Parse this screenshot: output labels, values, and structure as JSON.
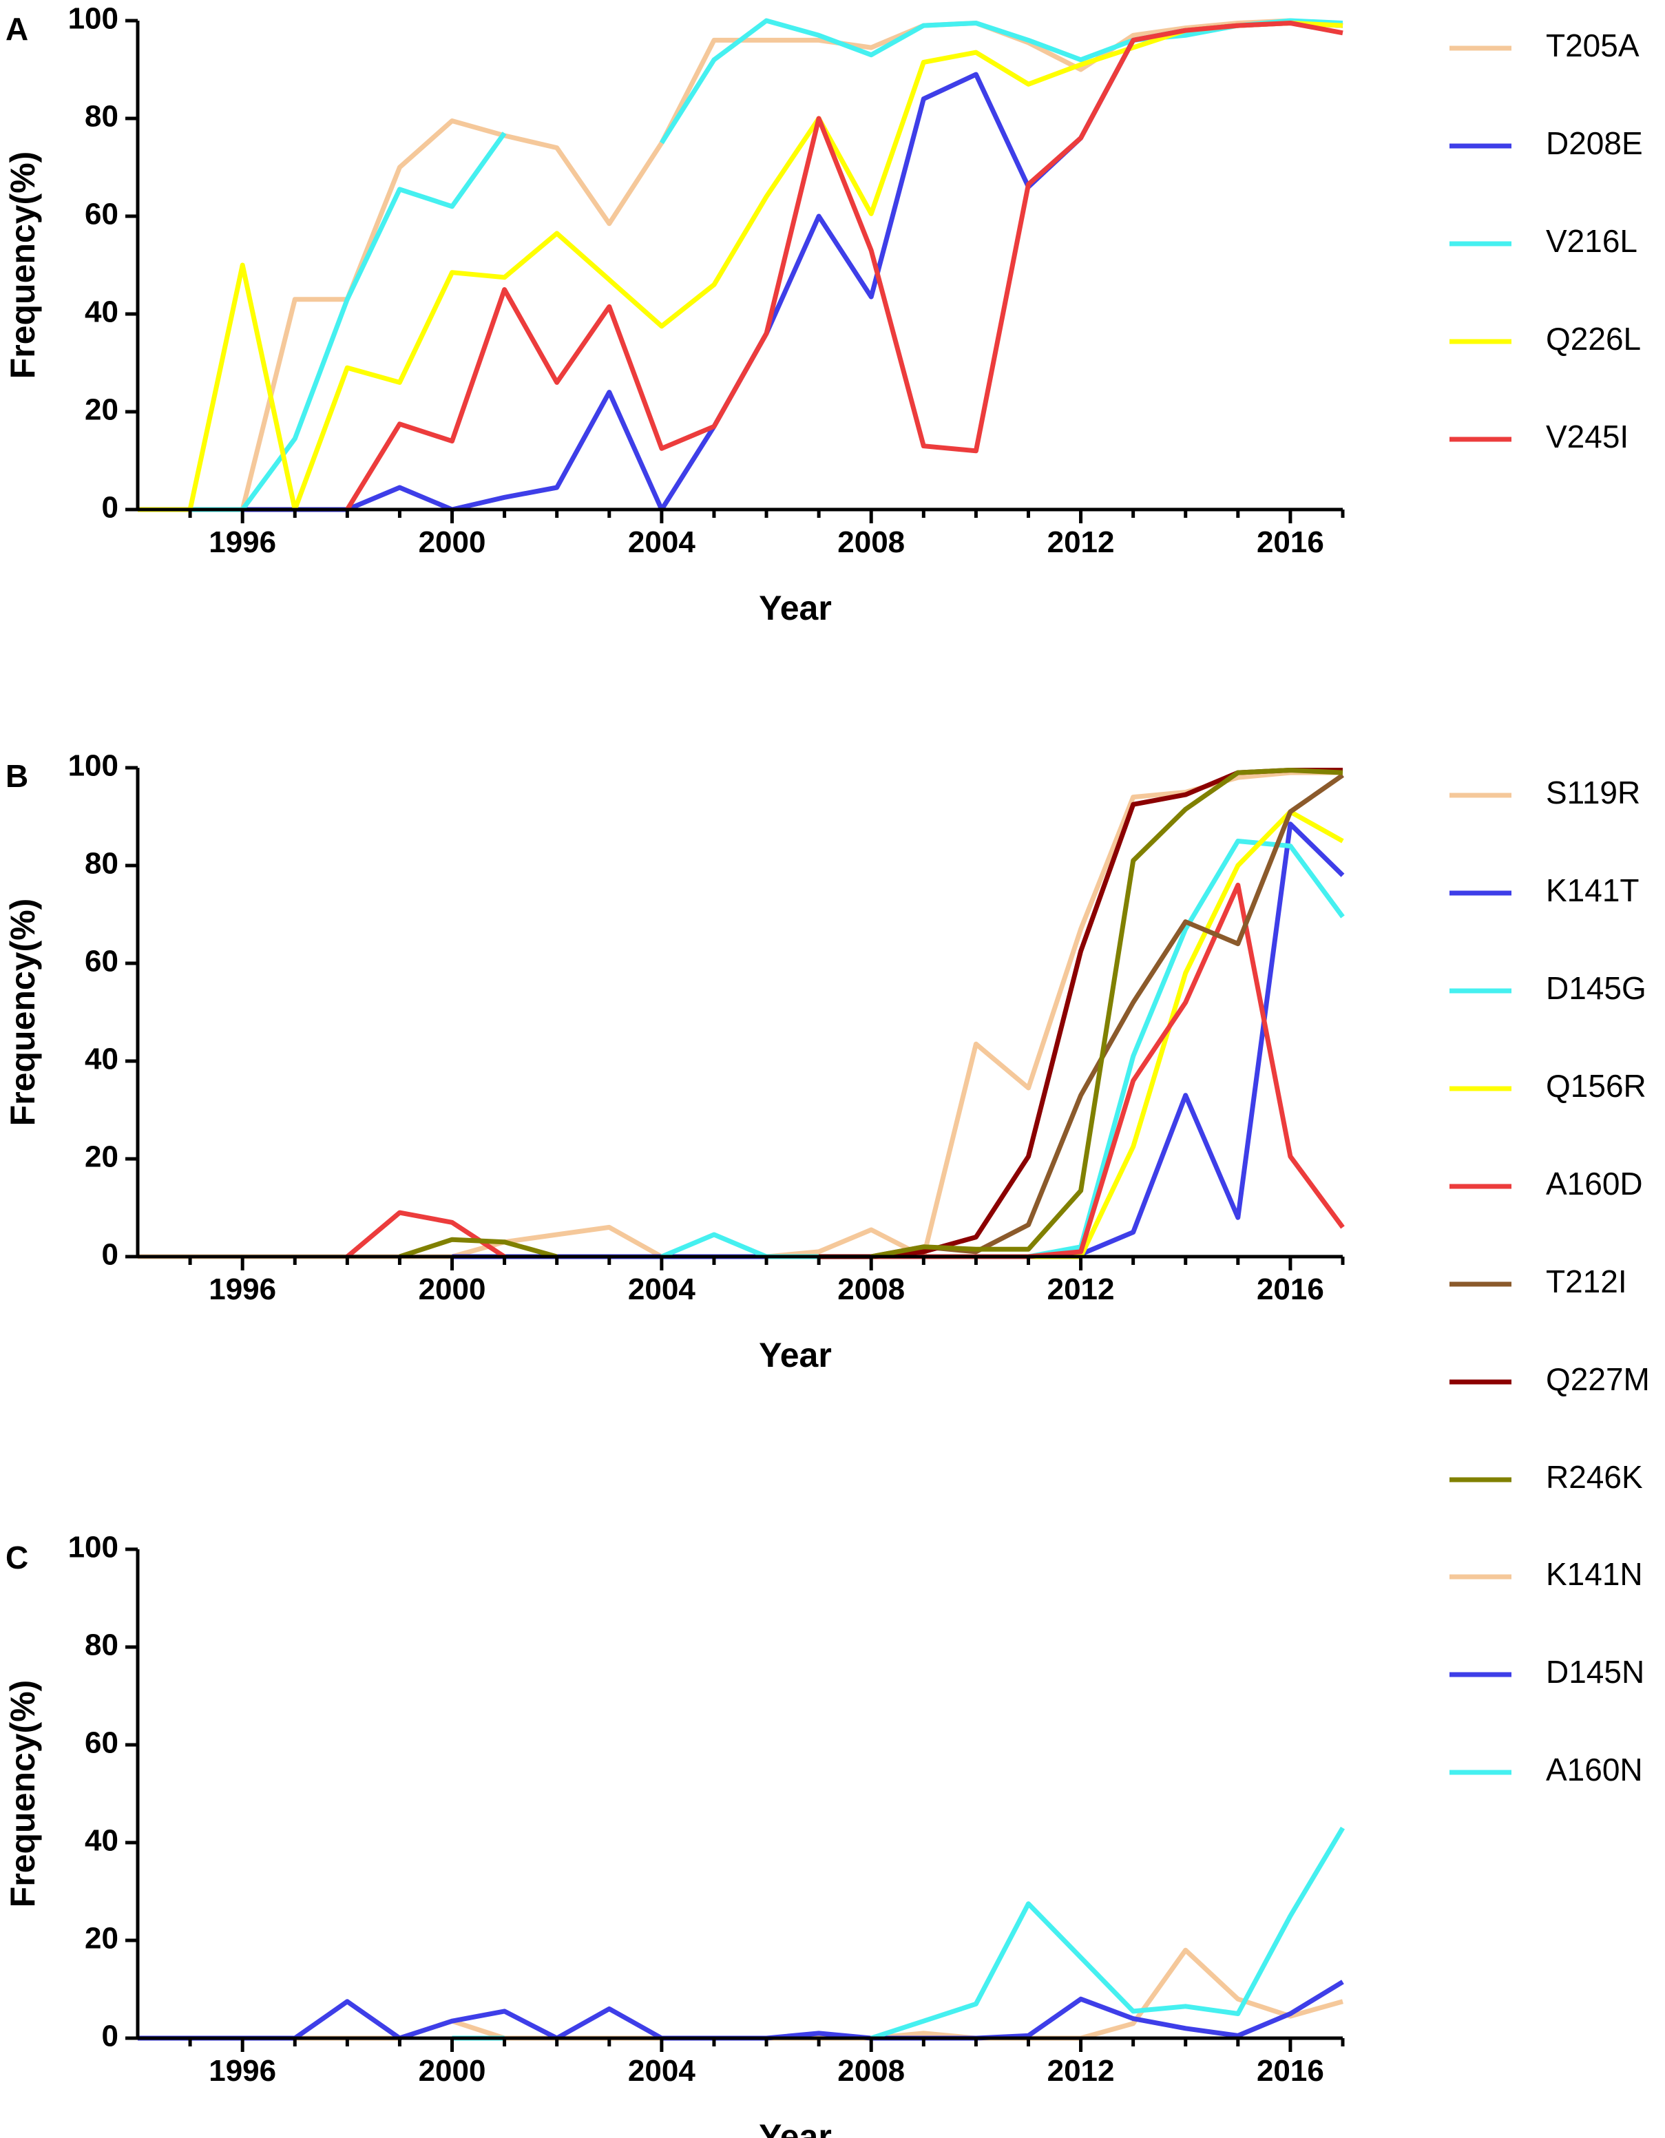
{
  "chart_data": [
    {
      "panel": "A",
      "type": "line",
      "xlabel": "Year",
      "ylabel": "Frequency(%)",
      "xlim": [
        1994,
        2017
      ],
      "ylim": [
        0,
        100
      ],
      "xticks": [
        1996,
        2000,
        2004,
        2008,
        2012,
        2016
      ],
      "yticks": [
        0,
        20,
        40,
        60,
        80,
        100
      ],
      "x": [
        1994,
        1995,
        1996,
        1997,
        1998,
        1999,
        2000,
        2001,
        2002,
        2003,
        2004,
        2005,
        2006,
        2007,
        2008,
        2009,
        2010,
        2011,
        2012,
        2013,
        2014,
        2015,
        2016,
        2017
      ],
      "series": [
        {
          "name": "T205A",
          "color": "#f5c89a",
          "values": [
            0,
            0,
            0,
            43,
            43,
            70,
            79.5,
            76.5,
            74,
            58.5,
            75,
            96,
            96,
            96,
            94.5,
            99,
            99.5,
            95.5,
            90,
            97,
            98.5,
            99.5,
            100,
            99
          ]
        },
        {
          "name": "D208E",
          "color": "#3e3ee8",
          "values": [
            0,
            0,
            0,
            0,
            0,
            4.5,
            0,
            2.5,
            4.5,
            24,
            0,
            17,
            36,
            60,
            43.5,
            84,
            89,
            66,
            76,
            96,
            98,
            99,
            99.5,
            99
          ]
        },
        {
          "name": "V216L",
          "color": "#45f0f0",
          "values": [
            0,
            0,
            0,
            14.5,
            43,
            65.5,
            62,
            77,
            null,
            null,
            75,
            92,
            100,
            97,
            93,
            99,
            99.5,
            96,
            92,
            96,
            97,
            99,
            100,
            99.5
          ]
        },
        {
          "name": "Q226L",
          "color": "#ffff00",
          "values": [
            0,
            0,
            50,
            0,
            29,
            26,
            48.5,
            47.5,
            56.5,
            47,
            37.5,
            46,
            64,
            80,
            60.5,
            91.5,
            93.5,
            87,
            91,
            94.5,
            98,
            99,
            99.5,
            99
          ]
        },
        {
          "name": "V245I",
          "color": "#ec3c3c",
          "values": [
            null,
            null,
            null,
            null,
            0,
            17.5,
            14,
            45,
            26,
            41.5,
            12.5,
            17,
            36,
            80,
            53,
            13,
            12,
            66.5,
            76,
            96,
            98,
            99,
            99.5,
            97.5
          ]
        }
      ]
    },
    {
      "panel": "B",
      "type": "line",
      "xlabel": "Year",
      "ylabel": "Frequency(%)",
      "xlim": [
        1994,
        2017
      ],
      "ylim": [
        0,
        100
      ],
      "xticks": [
        1996,
        2000,
        2004,
        2008,
        2012,
        2016
      ],
      "yticks": [
        0,
        20,
        40,
        60,
        80,
        100
      ],
      "x": [
        1994,
        1995,
        1996,
        1997,
        1998,
        1999,
        2000,
        2001,
        2002,
        2003,
        2004,
        2005,
        2006,
        2007,
        2008,
        2009,
        2010,
        2011,
        2012,
        2013,
        2014,
        2015,
        2016,
        2017
      ],
      "series": [
        {
          "name": "S119R",
          "color": "#f5c89a",
          "values": [
            0,
            0,
            0,
            0,
            0,
            0,
            0,
            3,
            4.5,
            6,
            0,
            0,
            0,
            1,
            5.5,
            0,
            43.5,
            34.5,
            67,
            94,
            95,
            98,
            99,
            99
          ]
        },
        {
          "name": "K141T",
          "color": "#3e3ee8",
          "values": [
            null,
            null,
            null,
            null,
            null,
            null,
            0,
            0,
            0,
            0,
            0,
            0,
            0,
            0,
            0,
            0,
            0,
            0,
            0.5,
            5,
            33,
            8,
            88.5,
            78
          ]
        },
        {
          "name": "D145G",
          "color": "#45f0f0",
          "values": [
            null,
            null,
            null,
            null,
            null,
            null,
            null,
            null,
            null,
            null,
            0,
            4.5,
            0,
            0,
            0,
            0,
            0,
            0,
            2,
            41,
            67,
            85,
            84,
            69.5
          ]
        },
        {
          "name": "Q156R",
          "color": "#ffff00",
          "values": [
            null,
            null,
            null,
            null,
            null,
            null,
            null,
            null,
            null,
            null,
            null,
            null,
            null,
            null,
            0,
            0,
            0,
            0,
            0,
            22.5,
            58,
            80,
            91,
            85
          ]
        },
        {
          "name": "A160D",
          "color": "#ec3c3c",
          "values": [
            null,
            null,
            null,
            null,
            0,
            9,
            7,
            0,
            null,
            null,
            null,
            null,
            null,
            null,
            0,
            0,
            0,
            0,
            1,
            36,
            52,
            76,
            20.5,
            6
          ]
        },
        {
          "name": "T212I",
          "color": "#8b5a2b",
          "values": [
            null,
            null,
            null,
            null,
            null,
            null,
            null,
            null,
            null,
            null,
            null,
            null,
            null,
            null,
            0,
            2,
            1,
            6.5,
            33,
            52,
            68.5,
            64,
            91,
            98.5
          ]
        },
        {
          "name": "Q227M",
          "color": "#8b0000",
          "values": [
            null,
            null,
            null,
            null,
            null,
            null,
            null,
            null,
            null,
            null,
            null,
            null,
            null,
            0,
            0,
            1,
            4,
            20.5,
            62.5,
            92.5,
            94.5,
            99,
            99.5,
            99.5
          ]
        },
        {
          "name": "R246K",
          "color": "#808000",
          "values": [
            null,
            null,
            null,
            null,
            null,
            0,
            3.5,
            3,
            0,
            null,
            null,
            null,
            null,
            null,
            0,
            2,
            1.5,
            1.5,
            13.5,
            81,
            91.5,
            99,
            99.5,
            99
          ]
        }
      ]
    },
    {
      "panel": "C",
      "type": "line",
      "xlabel": "Year",
      "ylabel": "Frequency(%)",
      "xlim": [
        1994,
        2017
      ],
      "ylim": [
        0,
        100
      ],
      "xticks": [
        1996,
        2000,
        2004,
        2008,
        2012,
        2016
      ],
      "yticks": [
        0,
        20,
        40,
        60,
        80,
        100
      ],
      "x": [
        1994,
        1995,
        1996,
        1997,
        1998,
        1999,
        2000,
        2001,
        2002,
        2003,
        2004,
        2005,
        2006,
        2007,
        2008,
        2009,
        2010,
        2011,
        2012,
        2013,
        2014,
        2015,
        2016,
        2017
      ],
      "series": [
        {
          "name": "K141N",
          "color": "#f5c89a",
          "values": [
            0,
            0,
            0,
            0,
            0,
            0,
            3.5,
            0,
            0,
            0,
            0,
            0,
            0,
            0,
            0,
            1,
            0,
            0,
            0,
            3,
            18,
            8,
            4.5,
            7.5
          ]
        },
        {
          "name": "D145N",
          "color": "#3e3ee8",
          "values": [
            0,
            0,
            0,
            0,
            7.5,
            0,
            3.5,
            5.5,
            0,
            6,
            0,
            0,
            0,
            1,
            0,
            0,
            0,
            0.5,
            8,
            4,
            2,
            0.5,
            5,
            11.5
          ]
        },
        {
          "name": "A160N",
          "color": "#45f0f0",
          "values": [
            null,
            null,
            null,
            null,
            null,
            null,
            0,
            0,
            null,
            null,
            null,
            null,
            null,
            null,
            0,
            3.5,
            7,
            27.5,
            16.5,
            5.5,
            6.5,
            5,
            25,
            43
          ]
        }
      ]
    }
  ]
}
